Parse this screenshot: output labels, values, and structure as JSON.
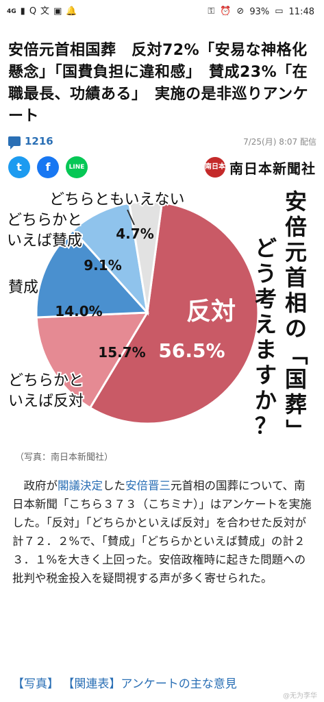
{
  "status_bar": {
    "left_icons": [
      "signal-icon",
      "wifi-icon",
      "q-app-icon",
      "translate-app-icon",
      "maps-app-icon",
      "notification-bell-icon"
    ],
    "left_text": "4G",
    "battery": "93%",
    "time": "11:48"
  },
  "article": {
    "headline": "安倍元首相国葬　反対72%「安易な神格化懸念」「国費負担に違和感」　賛成23%「在職最長、功績ある」　実施の是非巡りアンケート",
    "comments": "1216",
    "date": "7/25(月) 8:07 配信",
    "publisher_logo": "南日本",
    "publisher": "南日本新聞社",
    "caption": "（写真：南日本新聞社）",
    "body_parts": [
      "政府が",
      "閣議決定",
      "した",
      "安倍晋三",
      "元首相の国葬について、南日本新聞「こちら３７３（こちミナ）」はアンケートを実施した。「反対」「どちらかといえば反対」を合わせた反対が計７２．２%で、「賛成」「どちらかといえば賛成」の計２３．１%を大きく上回った。安倍政権時に起きた問題への批判や税金投入を疑問視する声が多く寄せられた。"
    ],
    "footer_links": [
      "【写真】",
      "【関連表】アンケートの主な意見"
    ],
    "watermark": "@无为李华"
  },
  "share": {
    "twitter": "t",
    "facebook": "f",
    "line": "LINE"
  },
  "chart_data": {
    "type": "pie",
    "title_columns": [
      "安倍元首相の「国葬」",
      "どう考えますか？"
    ],
    "slices": [
      {
        "label": "反対",
        "value": 56.5,
        "value_label": "56.5%",
        "color": "#c95a66"
      },
      {
        "label": "どちらかといえば反対",
        "label_lines": [
          "どちらかと",
          "いえば反対"
        ],
        "value": 15.7,
        "value_label": "15.7%",
        "color": "#e58a93"
      },
      {
        "label": "賛成",
        "value": 14.0,
        "value_label": "14.0%",
        "color": "#4a90cf"
      },
      {
        "label": "どちらかといえば賛成",
        "label_lines": [
          "どちらかと",
          "いえば賛成"
        ],
        "value": 9.1,
        "value_label": "9.1%",
        "color": "#8fc3ec"
      },
      {
        "label": "どちらともいえない",
        "value": 4.7,
        "value_label": "4.7%",
        "color": "#e2e2e2"
      }
    ]
  }
}
